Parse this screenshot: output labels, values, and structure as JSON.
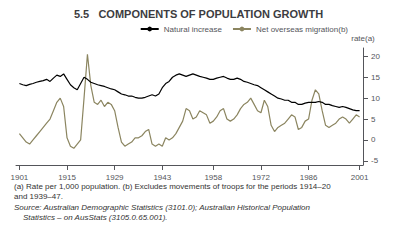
{
  "chart_data": {
    "type": "line",
    "title": "5.5   COMPONENTS OF POPULATION GROWTH",
    "ylabel": "rate(a)",
    "annotations": [
      "(a) Rate per 1,000 population. (b) Excludes movements of troops for the periods 1914–20",
      "and 1939–47.",
      "Source: Australian Demographic Statistics (3101.0); Australian Historical Population",
      "    Statistics – on AusStats (3105.0.65.001)."
    ],
    "x": [
      1901,
      1902,
      1903,
      1904,
      1905,
      1906,
      1907,
      1908,
      1909,
      1910,
      1911,
      1912,
      1913,
      1914,
      1915,
      1916,
      1917,
      1918,
      1919,
      1920,
      1921,
      1922,
      1923,
      1924,
      1925,
      1926,
      1927,
      1928,
      1929,
      1930,
      1931,
      1932,
      1933,
      1934,
      1935,
      1936,
      1937,
      1938,
      1939,
      1940,
      1941,
      1942,
      1943,
      1944,
      1945,
      1946,
      1947,
      1948,
      1949,
      1950,
      1951,
      1952,
      1953,
      1954,
      1955,
      1956,
      1957,
      1958,
      1959,
      1960,
      1961,
      1962,
      1963,
      1964,
      1965,
      1966,
      1967,
      1968,
      1969,
      1970,
      1971,
      1972,
      1973,
      1974,
      1975,
      1976,
      1977,
      1978,
      1979,
      1980,
      1981,
      1982,
      1983,
      1984,
      1985,
      1986,
      1987,
      1988,
      1989,
      1990,
      1991,
      1992,
      1993,
      1994,
      1995,
      1996,
      1997,
      1998,
      1999,
      2000,
      2001
    ],
    "series": [
      {
        "name": "Natural increase",
        "color": "#000000",
        "values": [
          13.5,
          13.2,
          13.0,
          13.3,
          13.5,
          13.8,
          14.0,
          14.2,
          14.5,
          14.0,
          14.8,
          15.5,
          15.2,
          15.8,
          14.5,
          13.2,
          12.5,
          12.0,
          13.5,
          15.0,
          14.5,
          13.8,
          13.5,
          13.2,
          13.0,
          12.8,
          12.5,
          12.2,
          12.0,
          11.5,
          11.0,
          10.8,
          10.5,
          10.5,
          10.2,
          10.0,
          10.0,
          10.2,
          10.5,
          10.8,
          10.5,
          11.0,
          12.5,
          13.5,
          14.0,
          15.0,
          15.5,
          15.8,
          15.5,
          15.2,
          15.5,
          15.8,
          15.5,
          15.2,
          15.0,
          14.8,
          14.5,
          14.5,
          14.8,
          15.0,
          15.2,
          14.8,
          14.5,
          14.5,
          14.8,
          14.5,
          14.0,
          13.8,
          13.5,
          13.2,
          13.0,
          12.5,
          12.0,
          11.5,
          11.0,
          10.5,
          10.0,
          9.8,
          9.5,
          9.5,
          9.0,
          9.0,
          8.5,
          8.5,
          8.8,
          9.0,
          9.0,
          9.0,
          9.2,
          9.0,
          8.5,
          8.5,
          8.2,
          8.0,
          7.8,
          8.0,
          7.8,
          7.5,
          7.2,
          7.0,
          7.0
        ]
      },
      {
        "name": "Net overseas migration(b)",
        "color": "#8B8560",
        "values": [
          1.5,
          0.5,
          -0.5,
          -1.0,
          0.0,
          1.0,
          2.0,
          3.0,
          4.0,
          5.0,
          7.0,
          9.0,
          10.0,
          8.0,
          0.5,
          -1.5,
          -2.0,
          -1.0,
          0.0,
          10.0,
          20.5,
          13.0,
          9.0,
          8.5,
          9.5,
          8.0,
          9.0,
          8.5,
          7.0,
          3.0,
          -0.5,
          -1.5,
          -1.0,
          -0.5,
          0.5,
          0.5,
          1.0,
          2.0,
          2.5,
          -1.0,
          -1.5,
          -1.0,
          -1.5,
          0.5,
          0.0,
          0.5,
          1.5,
          3.0,
          4.5,
          7.5,
          7.0,
          5.0,
          5.5,
          7.0,
          6.5,
          6.0,
          4.0,
          4.5,
          5.5,
          7.0,
          7.5,
          5.0,
          4.5,
          5.0,
          6.0,
          7.5,
          8.5,
          9.0,
          10.0,
          8.5,
          7.0,
          6.5,
          9.5,
          8.0,
          3.5,
          2.0,
          3.0,
          3.5,
          4.0,
          5.0,
          6.0,
          5.5,
          2.5,
          3.0,
          4.5,
          5.0,
          9.5,
          12.0,
          11.0,
          7.0,
          3.5,
          3.0,
          3.5,
          4.0,
          5.0,
          5.5,
          5.0,
          4.0,
          5.0,
          6.0,
          5.5
        ]
      }
    ],
    "xlim": [
      1900,
      2002
    ],
    "xticks": [
      1901,
      1915,
      1929,
      1943,
      1958,
      1972,
      1986,
      2001
    ],
    "ylim": [
      -6.0,
      22
    ],
    "yticks": [
      -5,
      0,
      5,
      10,
      15,
      20
    ],
    "grid": false,
    "legend": "upper right"
  }
}
